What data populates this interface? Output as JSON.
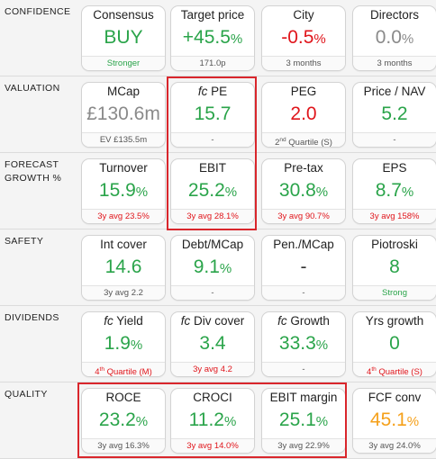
{
  "rows": [
    {
      "label": [
        "CONFIDENCE"
      ],
      "tiles": [
        {
          "title": "Consensus",
          "value": "BUY",
          "pct": "",
          "vcolor": "green",
          "foot": "Stronger",
          "fcolor": "foot-green"
        },
        {
          "title": "Target price",
          "value": "+45.5",
          "pct": "%",
          "vcolor": "green",
          "foot": "171.0p",
          "fcolor": ""
        },
        {
          "title": "City",
          "value": "-0.5",
          "pct": "%",
          "vcolor": "red",
          "foot": "3 months",
          "fcolor": ""
        },
        {
          "title": "Directors",
          "value": "0.0",
          "pct": "%",
          "vcolor": "grey",
          "foot": "3 months",
          "fcolor": ""
        }
      ]
    },
    {
      "label": [
        "VALUATION"
      ],
      "tiles": [
        {
          "title": "MCap",
          "value": "£130.6m",
          "pct": "",
          "vcolor": "grey",
          "foot": "EV £135.5m",
          "fcolor": ""
        },
        {
          "title_prefix": "fc",
          "title": "PE",
          "value": "15.7",
          "pct": "",
          "vcolor": "green",
          "foot": "-",
          "fcolor": ""
        },
        {
          "title": "PEG",
          "value": "2.0",
          "pct": "",
          "vcolor": "red",
          "foot_pre": "2",
          "foot_sup": "nd",
          "foot": " Quartile (S)",
          "fcolor": ""
        },
        {
          "title": "Price / NAV",
          "value": "5.2",
          "pct": "",
          "vcolor": "green",
          "foot": "-",
          "fcolor": ""
        }
      ]
    },
    {
      "label": [
        "FORECAST",
        "GROWTH %"
      ],
      "tiles": [
        {
          "title": "Turnover",
          "value": "15.9",
          "pct": "%",
          "vcolor": "green",
          "foot": "3y avg 23.5%",
          "fcolor": "foot-red"
        },
        {
          "title": "EBIT",
          "value": "25.2",
          "pct": "%",
          "vcolor": "green",
          "foot": "3y avg 28.1%",
          "fcolor": "foot-red"
        },
        {
          "title": "Pre-tax",
          "value": "30.8",
          "pct": "%",
          "vcolor": "green",
          "foot": "3y avg 90.7%",
          "fcolor": "foot-red"
        },
        {
          "title": "EPS",
          "value": "8.7",
          "pct": "%",
          "vcolor": "green",
          "foot": "3y avg 158%",
          "fcolor": "foot-red"
        }
      ]
    },
    {
      "label": [
        "SAFETY"
      ],
      "tiles": [
        {
          "title": "Int cover",
          "value": "14.6",
          "pct": "",
          "vcolor": "green",
          "foot": "3y avg 2.2",
          "fcolor": ""
        },
        {
          "title": "Debt/MCap",
          "value": "9.1",
          "pct": "%",
          "vcolor": "green",
          "foot": "-",
          "fcolor": ""
        },
        {
          "title": "Pen./MCap",
          "value": "-",
          "pct": "",
          "vcolor": "dark",
          "foot": "-",
          "fcolor": ""
        },
        {
          "title": "Piotroski",
          "value": "8",
          "pct": "",
          "vcolor": "green",
          "foot": "Strong",
          "fcolor": "foot-green"
        }
      ]
    },
    {
      "label": [
        "DIVIDENDS"
      ],
      "tiles": [
        {
          "title_prefix": "fc",
          "title": "Yield",
          "value": "1.9",
          "pct": "%",
          "vcolor": "green",
          "foot_pre": "4",
          "foot_sup": "th",
          "foot": " Quartile (M)",
          "fcolor": "foot-red"
        },
        {
          "title_prefix": "fc",
          "title": "Div cover",
          "value": "3.4",
          "pct": "",
          "vcolor": "green",
          "foot": "3y avg 4.2",
          "fcolor": "foot-red"
        },
        {
          "title_prefix": "fc",
          "title": "Growth",
          "value": "33.3",
          "pct": "%",
          "vcolor": "green",
          "foot": "-",
          "fcolor": ""
        },
        {
          "title": "Yrs growth",
          "value": "0",
          "pct": "",
          "vcolor": "green",
          "foot_pre": "4",
          "foot_sup": "th",
          "foot": " Quartile (S)",
          "fcolor": "foot-red"
        }
      ]
    },
    {
      "label": [
        "QUALITY"
      ],
      "tiles": [
        {
          "title": "ROCE",
          "value": "23.2",
          "pct": "%",
          "vcolor": "green",
          "foot": "3y avg 16.3%",
          "fcolor": ""
        },
        {
          "title": "CROCI",
          "value": "11.2",
          "pct": "%",
          "vcolor": "green",
          "foot": "3y avg 14.0%",
          "fcolor": "foot-red"
        },
        {
          "title": "EBIT margin",
          "value": "25.1",
          "pct": "%",
          "vcolor": "green",
          "foot": "3y avg 22.9%",
          "fcolor": ""
        },
        {
          "title": "FCF conv",
          "value": "45.1",
          "pct": "%",
          "vcolor": "orange",
          "foot": "3y avg 24.0%",
          "fcolor": ""
        }
      ]
    }
  ],
  "colors": {
    "green": "#2aa44a",
    "red": "#e0151b",
    "grey": "#8a8a8a",
    "orange": "#f5a01a",
    "highlight": "#d9262c"
  }
}
